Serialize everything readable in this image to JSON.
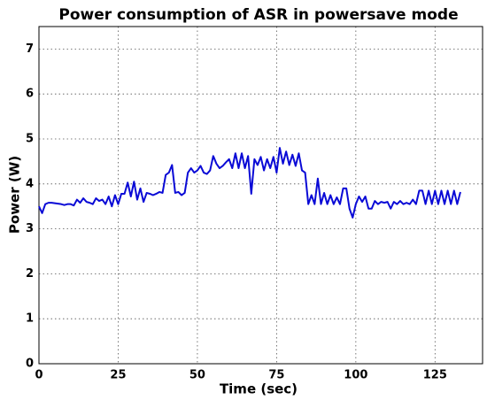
{
  "chart_data": {
    "type": "line",
    "title": "Power consumption of ASR in powersave mode",
    "xlabel": "Time (sec)",
    "ylabel": "Power (W)",
    "x": [
      0,
      1,
      2,
      3,
      4,
      5,
      6,
      7,
      8,
      9,
      10,
      11,
      12,
      13,
      14,
      15,
      16,
      17,
      18,
      19,
      20,
      21,
      22,
      23,
      24,
      25,
      26,
      27,
      28,
      29,
      30,
      31,
      32,
      33,
      34,
      35,
      36,
      37,
      38,
      39,
      40,
      41,
      42,
      43,
      44,
      45,
      46,
      47,
      48,
      49,
      50,
      51,
      52,
      53,
      54,
      55,
      56,
      57,
      58,
      59,
      60,
      61,
      62,
      63,
      64,
      65,
      66,
      67,
      68,
      69,
      70,
      71,
      72,
      73,
      74,
      75,
      76,
      77,
      78,
      79,
      80,
      81,
      82,
      83,
      84,
      85,
      86,
      87,
      88,
      89,
      90,
      91,
      92,
      93,
      94,
      95,
      96,
      97,
      98,
      99,
      100,
      101,
      102,
      103,
      104,
      105,
      106,
      107,
      108,
      109,
      110,
      111,
      112,
      113,
      114,
      115,
      116,
      117,
      118,
      119,
      120,
      121,
      122,
      123,
      124,
      125,
      126,
      127,
      128,
      129,
      130,
      131,
      132,
      133
    ],
    "series": [
      {
        "name": "Power",
        "color": "#0a0ad6",
        "values": [
          3.5,
          3.35,
          3.55,
          3.58,
          3.58,
          3.57,
          3.56,
          3.55,
          3.53,
          3.55,
          3.55,
          3.52,
          3.65,
          3.58,
          3.68,
          3.6,
          3.58,
          3.55,
          3.68,
          3.62,
          3.65,
          3.55,
          3.72,
          3.5,
          3.75,
          3.55,
          3.78,
          3.78,
          4.03,
          3.72,
          4.05,
          3.65,
          3.9,
          3.6,
          3.8,
          3.78,
          3.75,
          3.78,
          3.82,
          3.8,
          4.2,
          4.25,
          4.42,
          3.8,
          3.82,
          3.75,
          3.8,
          4.25,
          4.35,
          4.25,
          4.3,
          4.4,
          4.25,
          4.22,
          4.3,
          4.62,
          4.45,
          4.35,
          4.4,
          4.48,
          4.55,
          4.35,
          4.68,
          4.35,
          4.68,
          4.35,
          4.62,
          3.78,
          4.55,
          4.42,
          4.6,
          4.3,
          4.55,
          4.35,
          4.6,
          4.25,
          4.8,
          4.45,
          4.72,
          4.42,
          4.65,
          4.4,
          4.68,
          4.3,
          4.25,
          3.55,
          3.75,
          3.55,
          4.12,
          3.55,
          3.8,
          3.55,
          3.75,
          3.55,
          3.7,
          3.55,
          3.9,
          3.9,
          3.45,
          3.25,
          3.55,
          3.72,
          3.6,
          3.72,
          3.45,
          3.45,
          3.62,
          3.55,
          3.6,
          3.58,
          3.6,
          3.45,
          3.6,
          3.55,
          3.62,
          3.55,
          3.58,
          3.55,
          3.65,
          3.55,
          3.85,
          3.85,
          3.55,
          3.85,
          3.55,
          3.85,
          3.55,
          3.85,
          3.55,
          3.85,
          3.55,
          3.85,
          3.55,
          3.82
        ]
      }
    ],
    "xlim": [
      0,
      140
    ],
    "xticks": [
      0,
      25,
      50,
      75,
      100,
      125
    ],
    "ylim": [
      0,
      7.5
    ],
    "yticks": [
      0,
      1,
      2,
      3,
      4,
      5,
      6,
      7
    ],
    "grid": true
  }
}
